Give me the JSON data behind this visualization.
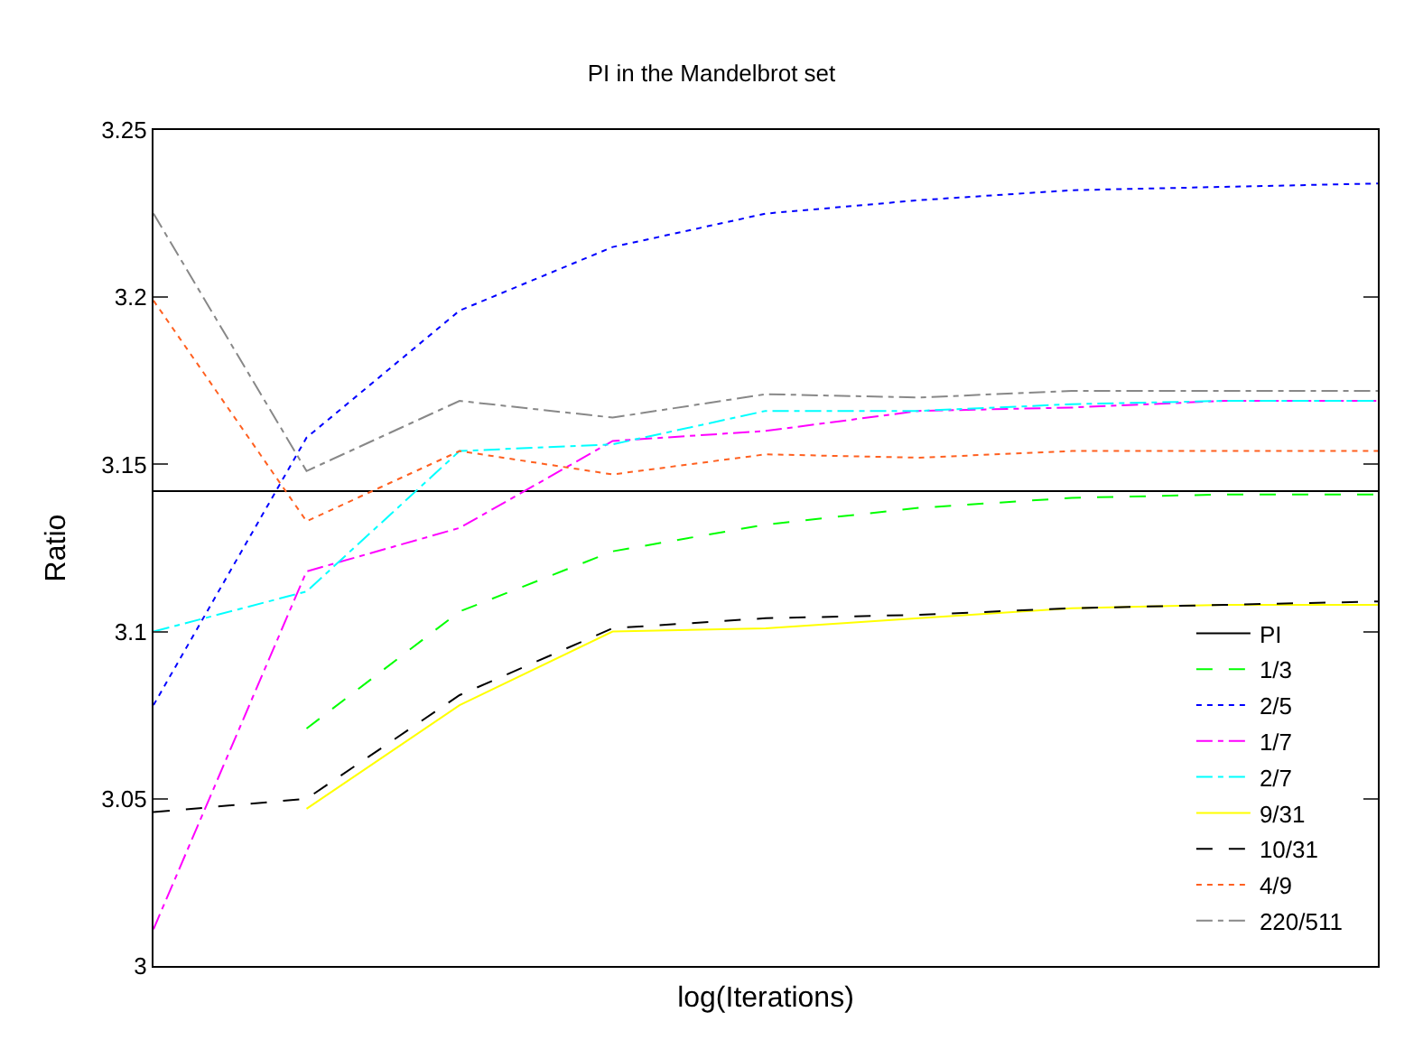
{
  "chart_data": {
    "type": "line",
    "title": "PI in the Mandelbrot set",
    "xlabel": "log(Iterations)",
    "ylabel": "Ratio",
    "categories": [
      null,
      null,
      null,
      null,
      null,
      null,
      null,
      null,
      null
    ],
    "ylim": [
      3,
      3.25
    ],
    "yticks": [
      3,
      3.05,
      3.1,
      3.15,
      3.2,
      3.25
    ],
    "legend": "bottom right",
    "marker": "none",
    "series": [
      {
        "name": "PI",
        "color": "#000000",
        "line_style": "solid",
        "values": [
          3.142,
          3.142,
          3.142,
          3.142,
          3.142,
          3.142,
          3.142,
          3.142,
          3.142
        ]
      },
      {
        "name": "1/3",
        "color": "#00ff00",
        "line_style": "dashed",
        "values": [
          null,
          3.071,
          3.106,
          3.124,
          3.132,
          3.137,
          3.14,
          3.141,
          3.141
        ]
      },
      {
        "name": "2/5",
        "color": "#0000ff",
        "line_style": "dotted",
        "values": [
          3.078,
          3.158,
          3.196,
          3.215,
          3.225,
          3.229,
          3.232,
          3.233,
          3.234
        ]
      },
      {
        "name": "1/7",
        "color": "#ff00ff",
        "line_style": "dashdot",
        "values": [
          3.011,
          3.118,
          3.131,
          3.157,
          3.16,
          3.166,
          3.167,
          3.169,
          3.169
        ]
      },
      {
        "name": "2/7",
        "color": "#00ffff",
        "line_style": "dashdot",
        "values": [
          3.1,
          3.112,
          3.154,
          3.156,
          3.166,
          3.166,
          3.168,
          3.169,
          3.169
        ]
      },
      {
        "name": "9/31",
        "color": "#ffff00",
        "line_style": "solid",
        "values": [
          null,
          3.047,
          3.078,
          3.1,
          3.101,
          3.104,
          3.107,
          3.108,
          3.108
        ]
      },
      {
        "name": "10/31",
        "color": "#000000",
        "line_style": "dashed",
        "values": [
          3.046,
          3.05,
          3.081,
          3.101,
          3.104,
          3.105,
          3.107,
          3.108,
          3.109
        ]
      },
      {
        "name": "4/9",
        "color": "#ff6020",
        "line_style": "dotted",
        "values": [
          3.199,
          3.133,
          3.154,
          3.147,
          3.153,
          3.152,
          3.154,
          3.154,
          3.154
        ]
      },
      {
        "name": "220/511",
        "color": "#888888",
        "line_style": "dashdot",
        "values": [
          3.225,
          3.148,
          3.169,
          3.164,
          3.171,
          3.17,
          3.172,
          3.172,
          3.172
        ]
      }
    ]
  }
}
